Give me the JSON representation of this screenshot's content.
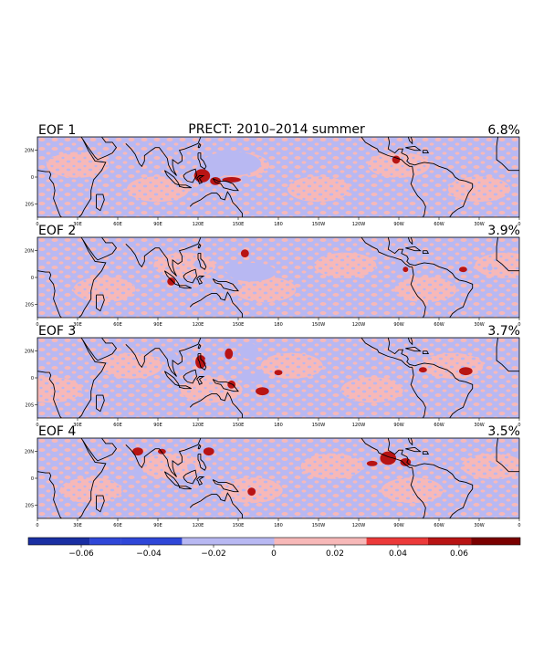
{
  "chart_data": {
    "type": "heatmap",
    "title": "PRECT: 2010–2014 summer",
    "panels": [
      {
        "label": "EOF 1",
        "variance": "6.8%"
      },
      {
        "label": "EOF 2",
        "variance": "3.9%"
      },
      {
        "label": "EOF 3",
        "variance": "3.7%"
      },
      {
        "label": "EOF 4",
        "variance": "3.5%"
      }
    ],
    "lon_ticks": [
      "0",
      "30E",
      "60E",
      "90E",
      "120E",
      "150E",
      "180",
      "150W",
      "120W",
      "90W",
      "60W",
      "30W",
      "0"
    ],
    "lat_ticks": [
      "20N",
      "0",
      "20S"
    ],
    "lon_range": [
      0,
      360
    ],
    "lat_range": [
      -30,
      30
    ],
    "colorbar": {
      "ticks": [
        "−0.06",
        "−0.04",
        "−0.02",
        "0",
        "0.02",
        "0.04",
        "0.06"
      ],
      "levels": [
        -0.06,
        -0.04,
        -0.02,
        0,
        0.02,
        0.04,
        0.06
      ],
      "colors": [
        "#1a2fa3",
        "#2f47d8",
        "#b8b8f2",
        "#f7b8b8",
        "#ec3a3a",
        "#b81414",
        "#7a0000"
      ]
    },
    "background_color_negative": "#b8b8f2",
    "background_color_positive": "#f7b8b8",
    "features": [
      [
        {
          "lon": 145,
          "lat": 10,
          "rlon": 22,
          "rlat": 9,
          "value": -0.03
        },
        {
          "lon": 130,
          "lat": 5,
          "rlon": 12,
          "rlat": 6,
          "value": -0.025
        },
        {
          "lon": 123,
          "lat": 1,
          "rlon": 6,
          "rlat": 5,
          "value": 0.03
        },
        {
          "lon": 133,
          "lat": -3,
          "rlon": 4,
          "rlat": 3,
          "value": 0.025
        },
        {
          "lon": 145,
          "lat": -2,
          "rlon": 7,
          "rlat": 2,
          "value": 0.025
        },
        {
          "lon": 155,
          "lat": -1,
          "rlon": 3,
          "rlat": 2,
          "value": -0.025
        },
        {
          "lon": 268,
          "lat": 13,
          "rlon": 3,
          "rlat": 3,
          "value": 0.025
        },
        {
          "lon": 100,
          "lat": 2,
          "rlon": 3,
          "rlat": 4,
          "value": -0.025
        }
      ],
      [
        {
          "lon": 160,
          "lat": 4,
          "rlon": 18,
          "rlat": 7,
          "value": -0.03
        },
        {
          "lon": 155,
          "lat": 18,
          "rlon": 3,
          "rlat": 3,
          "value": 0.025
        },
        {
          "lon": 145,
          "lat": 7,
          "rlon": 6,
          "rlat": 4,
          "value": -0.025
        },
        {
          "lon": 120,
          "lat": 10,
          "rlon": 3,
          "rlat": 3,
          "value": -0.025
        },
        {
          "lon": 100,
          "lat": -3,
          "rlon": 3,
          "rlat": 3,
          "value": 0.025
        },
        {
          "lon": 150,
          "lat": -7,
          "rlon": 3,
          "rlat": 2,
          "value": -0.025
        },
        {
          "lon": 270,
          "lat": 8,
          "rlon": 3,
          "rlat": 2,
          "value": -0.025
        },
        {
          "lon": 275,
          "lat": 6,
          "rlon": 2,
          "rlat": 2,
          "value": 0.025
        },
        {
          "lon": 318,
          "lat": 6,
          "rlon": 3,
          "rlat": 2,
          "value": 0.025
        },
        {
          "lon": 338,
          "lat": 7,
          "rlon": 2,
          "rlat": 2,
          "value": -0.025
        }
      ],
      [
        {
          "lon": 158,
          "lat": 20,
          "rlon": 7,
          "rlat": 6,
          "value": -0.03
        },
        {
          "lon": 143,
          "lat": 18,
          "rlon": 3,
          "rlat": 4,
          "value": 0.025
        },
        {
          "lon": 122,
          "lat": 12,
          "rlon": 4,
          "rlat": 5,
          "value": 0.025
        },
        {
          "lon": 128,
          "lat": 13,
          "rlon": 3,
          "rlat": 3,
          "value": -0.025
        },
        {
          "lon": 100,
          "lat": 16,
          "rlon": 4,
          "rlat": 3,
          "value": -0.025
        },
        {
          "lon": 160,
          "lat": 0,
          "rlon": 10,
          "rlat": 3,
          "value": -0.025
        },
        {
          "lon": 168,
          "lat": -10,
          "rlon": 5,
          "rlat": 3,
          "value": 0.025
        },
        {
          "lon": 145,
          "lat": -5,
          "rlon": 3,
          "rlat": 3,
          "value": 0.025
        },
        {
          "lon": 180,
          "lat": 4,
          "rlon": 3,
          "rlat": 2,
          "value": 0.025
        },
        {
          "lon": 320,
          "lat": 5,
          "rlon": 5,
          "rlat": 3,
          "value": 0.025
        },
        {
          "lon": 288,
          "lat": 6,
          "rlon": 3,
          "rlat": 2,
          "value": 0.025
        },
        {
          "lon": 348,
          "lat": 10,
          "rlon": 2,
          "rlat": 2,
          "value": -0.025
        }
      ],
      [
        {
          "lon": 262,
          "lat": 15,
          "rlon": 6,
          "rlat": 5,
          "value": 0.03
        },
        {
          "lon": 275,
          "lat": 12,
          "rlon": 4,
          "rlat": 3,
          "value": 0.025
        },
        {
          "lon": 250,
          "lat": 11,
          "rlon": 4,
          "rlat": 2,
          "value": 0.025
        },
        {
          "lon": 75,
          "lat": 5,
          "rlon": 4,
          "rlat": 3,
          "value": -0.025
        },
        {
          "lon": 72,
          "lat": -10,
          "rlon": 3,
          "rlat": 2,
          "value": -0.025
        },
        {
          "lon": 75,
          "lat": 20,
          "rlon": 4,
          "rlat": 3,
          "value": 0.025
        },
        {
          "lon": 128,
          "lat": 20,
          "rlon": 4,
          "rlat": 3,
          "value": 0.025
        },
        {
          "lon": 160,
          "lat": -10,
          "rlon": 3,
          "rlat": 3,
          "value": 0.025
        },
        {
          "lon": 93,
          "lat": 20,
          "rlon": 3,
          "rlat": 2,
          "value": 0.025
        },
        {
          "lon": 340,
          "lat": 10,
          "rlon": 2,
          "rlat": 2,
          "value": -0.025
        },
        {
          "lon": 115,
          "lat": 8,
          "rlon": 3,
          "rlat": 3,
          "value": -0.025
        }
      ]
    ]
  }
}
